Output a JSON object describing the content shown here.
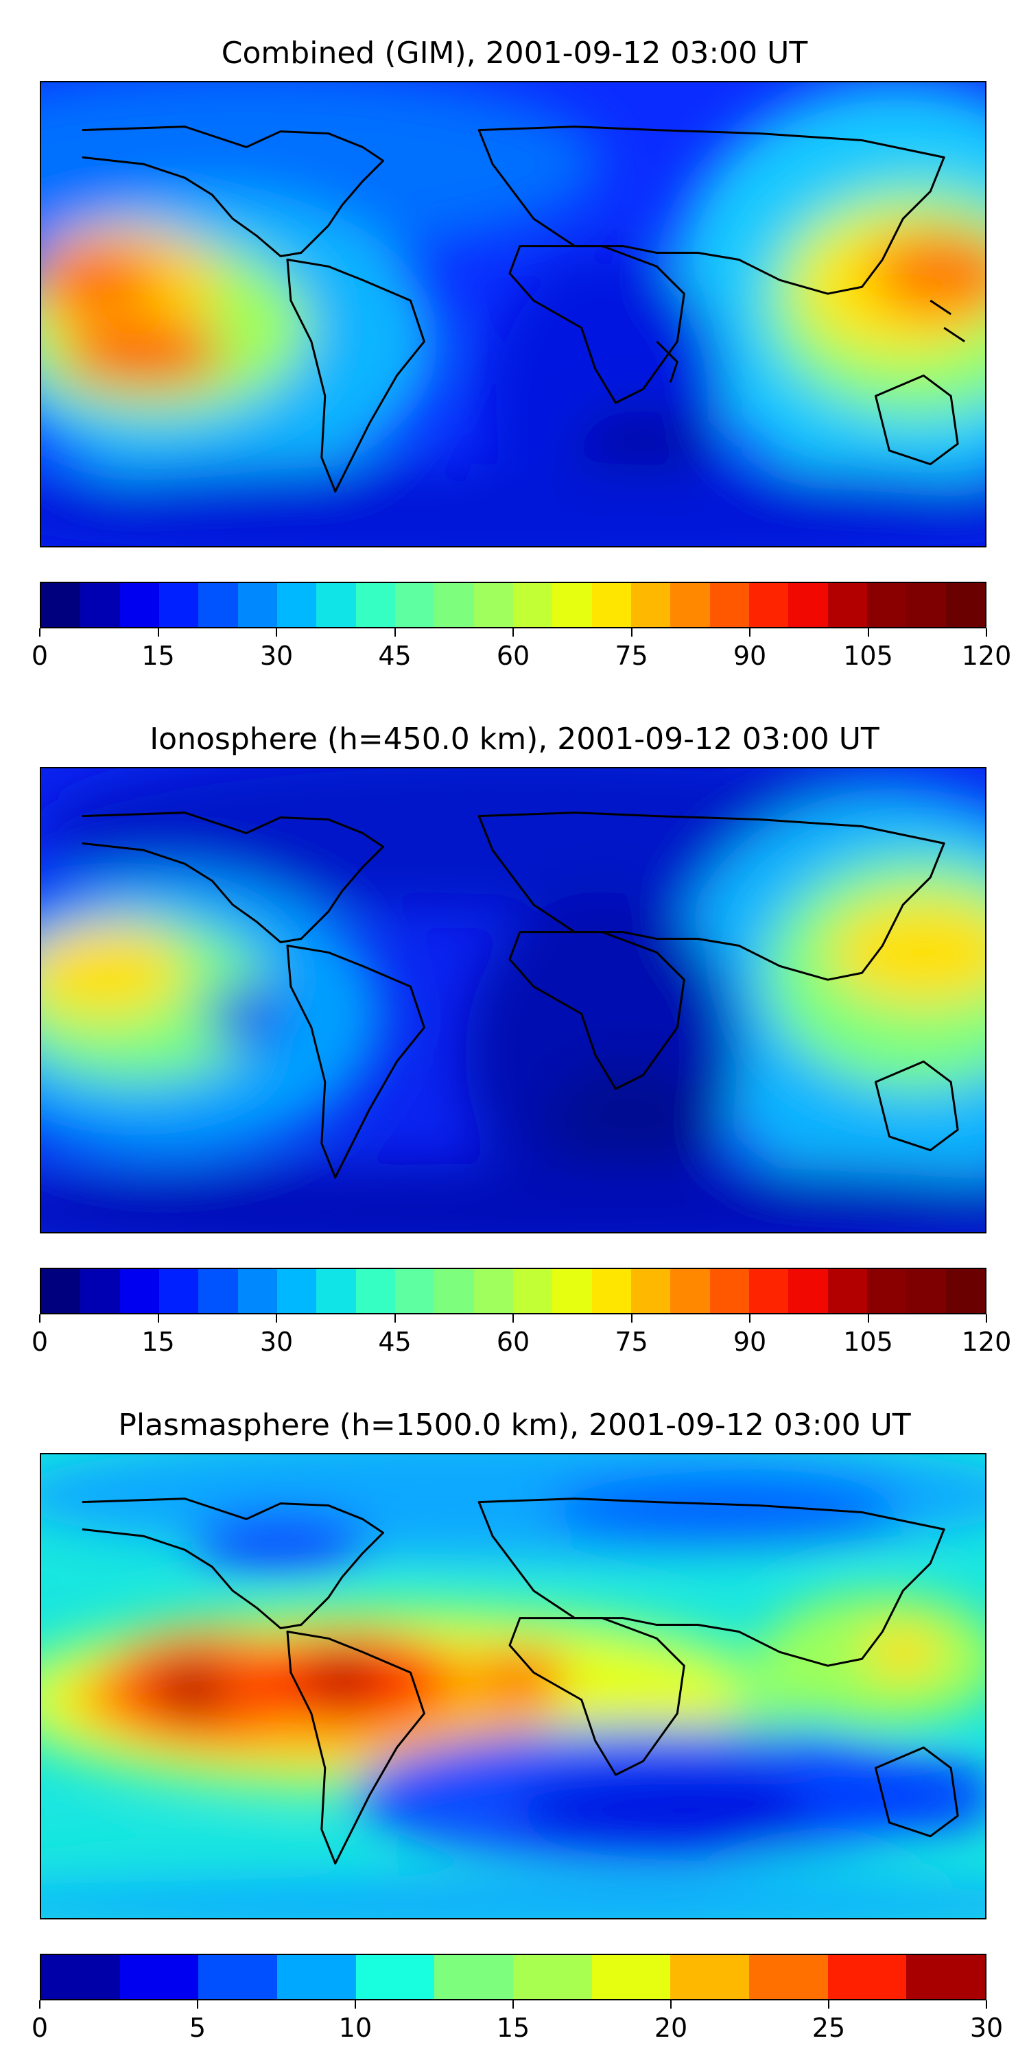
{
  "panels": [
    {
      "title": "Combined (GIM), 2001-09-12 03:00 UT",
      "colorbar": {
        "colormap": "jet",
        "range": [
          0,
          120
        ],
        "levels": [
          0,
          5,
          10,
          15,
          20,
          25,
          30,
          35,
          40,
          45,
          50,
          55,
          60,
          65,
          70,
          75,
          80,
          85,
          90,
          95,
          100,
          105,
          110,
          115,
          120
        ],
        "ticks": [
          "0",
          "15",
          "30",
          "45",
          "60",
          "75",
          "90",
          "105",
          "120"
        ]
      }
    },
    {
      "title": "Ionosphere  (h=450.0 km), 2001-09-12 03:00 UT",
      "colorbar": {
        "colormap": "jet",
        "range": [
          0,
          120
        ],
        "levels": [
          0,
          5,
          10,
          15,
          20,
          25,
          30,
          35,
          40,
          45,
          50,
          55,
          60,
          65,
          70,
          75,
          80,
          85,
          90,
          95,
          100,
          105,
          110,
          115,
          120
        ],
        "ticks": [
          "0",
          "15",
          "30",
          "45",
          "60",
          "75",
          "90",
          "105",
          "120"
        ]
      }
    },
    {
      "title": "Plasmasphere (h=1500.0 km), 2001-09-12 03:00 UT",
      "colorbar": {
        "colormap": "jet",
        "range": [
          0,
          30
        ],
        "levels": [
          0,
          2.5,
          5,
          7.5,
          10,
          12.5,
          15,
          17.5,
          20,
          22.5,
          25,
          27.5,
          30
        ],
        "ticks": [
          "0",
          "5",
          "10",
          "15",
          "20",
          "25",
          "30"
        ]
      }
    }
  ]
}
